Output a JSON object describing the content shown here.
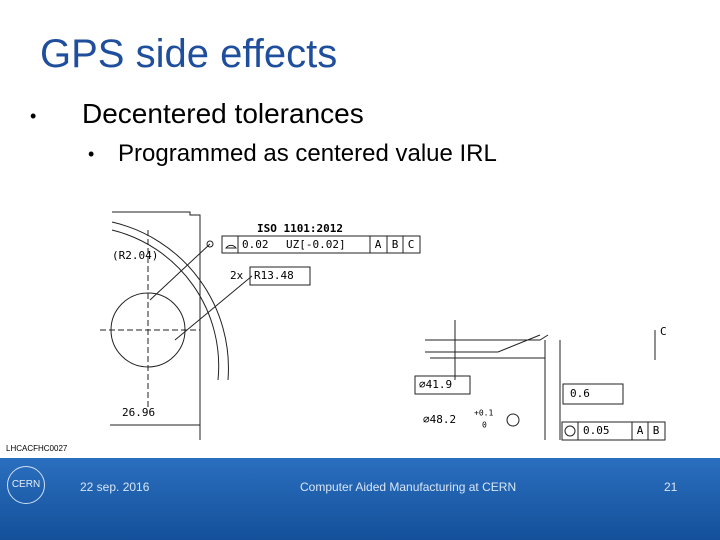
{
  "header": {
    "title": "GPS side effects"
  },
  "bullets": [
    {
      "text": "Decentered tolerances",
      "children": [
        "Programmed as centered value IRL"
      ]
    }
  ],
  "figure": {
    "left": {
      "standard": "ISO 1101:2012",
      "tolerance": "0.02",
      "zone": "UZ[-0.02]",
      "datums": [
        "A",
        "B",
        "C"
      ],
      "radius_ref": "(R2.04)",
      "count": "2x",
      "radius": "R13.48",
      "width": "26.96"
    },
    "right": {
      "diameter_1": "⌀41.9",
      "diameter_2": "⌀48.2",
      "upper_dev": "+0.1",
      "lower_dev": "0",
      "length": "0.6",
      "tolerance": "0.05",
      "datums": [
        "A",
        "B"
      ],
      "datum_label": "C"
    }
  },
  "footer": {
    "ref": "LHCACFHC0027",
    "date": "22 sep. 2016",
    "title": "Computer Aided Manufacturing at CERN",
    "page": "21",
    "logo": "CERN"
  }
}
